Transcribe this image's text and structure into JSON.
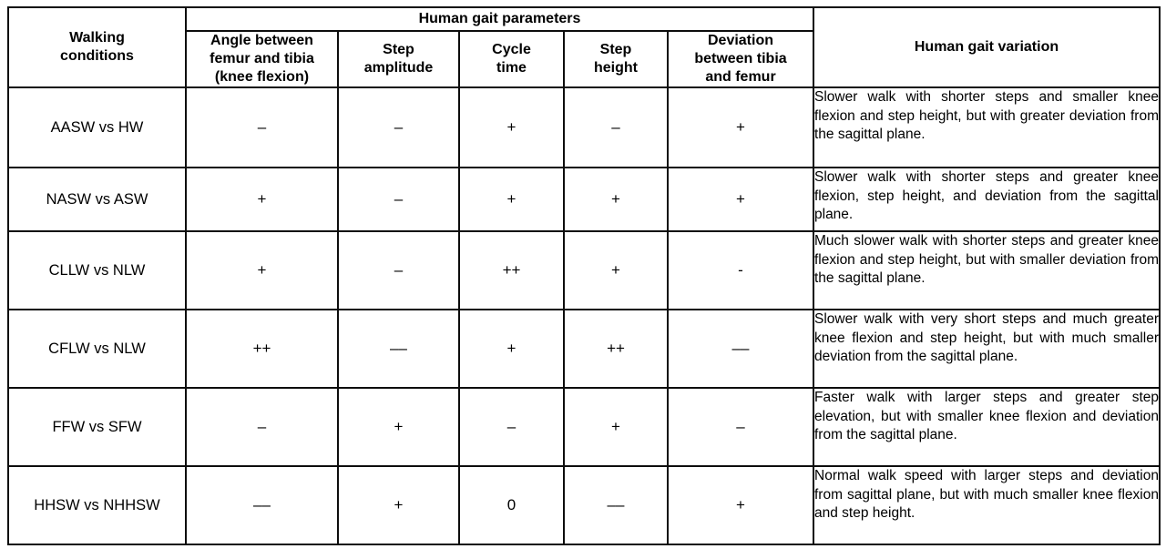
{
  "table": {
    "header": {
      "walking_conditions": "Walking conditions",
      "parameters_group": "Human gait parameters",
      "variation": "Human gait variation",
      "parameter_columns": [
        "Angle between femur and tibia (knee flexion)",
        "Step amplitude",
        "Cycle time",
        "Step height",
        "Deviation between tibia and femur"
      ]
    },
    "rows": [
      {
        "condition": "AASW vs HW",
        "knee_flexion": "–",
        "step_amplitude": "–",
        "cycle_time": "+",
        "step_height": "–",
        "deviation": "+",
        "variation": "Slower walk with shorter steps and smaller knee flexion and step height, but with greater deviation from the sagittal plane."
      },
      {
        "condition": "NASW vs ASW",
        "knee_flexion": "+",
        "step_amplitude": "–",
        "cycle_time": "+",
        "step_height": "+",
        "deviation": "+",
        "variation": "Slower walk with shorter steps and greater knee flexion, step height, and deviation from the sagittal plane."
      },
      {
        "condition": "CLLW vs NLW",
        "knee_flexion": "+",
        "step_amplitude": "–",
        "cycle_time": "++",
        "step_height": "+",
        "deviation": "-",
        "variation": "Much slower walk with shorter steps and greater knee flexion and step height, but with smaller deviation from the sagittal plane."
      },
      {
        "condition": "CFLW vs NLW",
        "knee_flexion": "++",
        "step_amplitude": "––",
        "cycle_time": "+",
        "step_height": "++",
        "deviation": "––",
        "variation": "Slower walk with very short steps and much greater knee flexion and step height, but with much smaller deviation from the sagittal plane."
      },
      {
        "condition": "FFW vs SFW",
        "knee_flexion": "–",
        "step_amplitude": "+",
        "cycle_time": "–",
        "step_height": "+",
        "deviation": "–",
        "variation": "Faster walk with larger steps and greater step elevation, but with smaller knee flexion and deviation from the sagittal plane."
      },
      {
        "condition": "HHSW vs NHHSW",
        "knee_flexion": "––",
        "step_amplitude": "+",
        "cycle_time": "0",
        "step_height": "––",
        "deviation": "+",
        "variation": "Normal walk speed with larger steps and deviation from sagittal plane, but with much smaller knee flexion and step height."
      }
    ]
  }
}
